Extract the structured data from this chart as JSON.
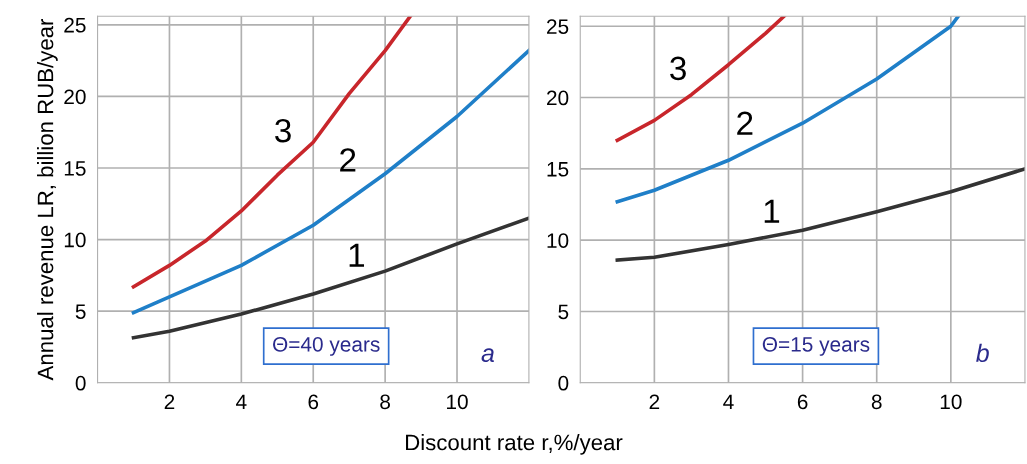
{
  "chart_data": [
    {
      "type": "line",
      "ylabel": "Annual revenue LR, billion RUB/year",
      "xlabel": "Discount rate r,%/year",
      "xlim": [
        0,
        12
      ],
      "ylim": [
        0,
        25.6
      ],
      "grid": true,
      "marker": "none",
      "line_style": "solid",
      "xticks": [
        2,
        4,
        6,
        8,
        10
      ],
      "yticks": [
        0,
        5,
        10,
        15,
        20,
        25
      ],
      "series": [
        {
          "name": "1",
          "color": "#333333",
          "x": [
            1,
            2,
            4,
            6,
            8,
            10,
            12
          ],
          "values": [
            3.15,
            3.6,
            4.8,
            6.2,
            7.8,
            9.7,
            11.5
          ]
        },
        {
          "name": "2",
          "color": "#1f7fc8",
          "x": [
            1,
            2,
            4,
            6,
            8,
            10,
            12
          ],
          "values": [
            4.9,
            6.0,
            8.2,
            11.0,
            14.6,
            18.6,
            23.2
          ]
        },
        {
          "name": "3",
          "color": "#c8262b",
          "x": [
            1,
            2,
            3,
            4,
            5,
            6,
            7,
            8,
            8.7
          ],
          "values": [
            6.7,
            8.2,
            9.9,
            12.0,
            14.5,
            16.8,
            20.2,
            23.2,
            25.6
          ]
        }
      ],
      "annotations": [
        "Θ=40 years",
        "a"
      ]
    },
    {
      "type": "line",
      "xlim": [
        0,
        12
      ],
      "ylim": [
        0,
        25.7
      ],
      "grid": true,
      "marker": "none",
      "line_style": "solid",
      "xticks": [
        2,
        4,
        6,
        8,
        10
      ],
      "yticks": [
        0,
        5,
        10,
        15,
        20,
        25
      ],
      "series": [
        {
          "name": "1",
          "color": "#333333",
          "x": [
            1,
            2,
            4,
            6,
            8,
            10,
            12
          ],
          "values": [
            8.6,
            8.8,
            9.7,
            10.7,
            12.0,
            13.4,
            15.0
          ]
        },
        {
          "name": "2",
          "color": "#1f7fc8",
          "x": [
            1,
            2,
            4,
            6,
            8,
            10,
            10.2
          ],
          "values": [
            12.7,
            13.5,
            15.6,
            18.2,
            21.3,
            25.0,
            25.7
          ]
        },
        {
          "name": "3",
          "color": "#c8262b",
          "x": [
            1,
            2,
            3,
            4,
            5,
            5.5
          ],
          "values": [
            17.0,
            18.4,
            20.2,
            22.3,
            24.5,
            25.7
          ]
        }
      ],
      "annotations": [
        "Θ=15 years",
        "b"
      ]
    }
  ]
}
